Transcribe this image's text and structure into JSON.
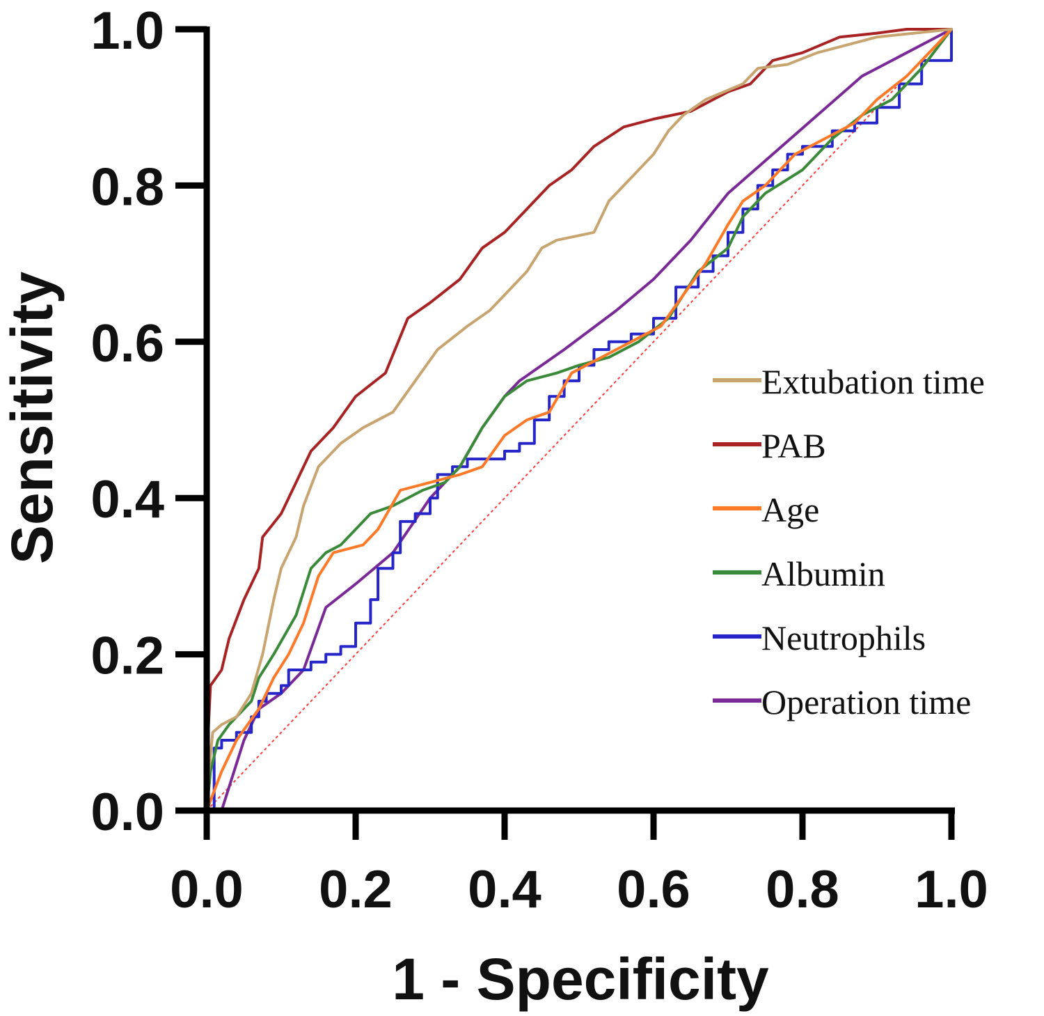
{
  "chart_data": {
    "type": "line",
    "title": "",
    "xlabel": "1 - Specificity",
    "ylabel": "Sensitivity",
    "xlim": [
      0,
      1
    ],
    "ylim": [
      0,
      1
    ],
    "xticks": [
      "0.0",
      "0.2",
      "0.4",
      "0.6",
      "0.8",
      "1.0"
    ],
    "yticks": [
      "0.0",
      "0.2",
      "0.4",
      "0.6",
      "0.8",
      "1.0"
    ],
    "grid": false,
    "legend_position": "right",
    "reference_line": {
      "name": "Reference",
      "color": "#ff3b3b",
      "dashed": true,
      "points": [
        [
          0,
          0
        ],
        [
          1,
          1
        ]
      ]
    },
    "series": [
      {
        "name": "Extubation time",
        "color": "#c8a570",
        "step": false,
        "points": [
          [
            0,
            0
          ],
          [
            0.003,
            0.05
          ],
          [
            0.008,
            0.1
          ],
          [
            0.02,
            0.11
          ],
          [
            0.04,
            0.12
          ],
          [
            0.06,
            0.15
          ],
          [
            0.075,
            0.2
          ],
          [
            0.09,
            0.27
          ],
          [
            0.1,
            0.31
          ],
          [
            0.12,
            0.35
          ],
          [
            0.13,
            0.39
          ],
          [
            0.15,
            0.44
          ],
          [
            0.18,
            0.47
          ],
          [
            0.21,
            0.49
          ],
          [
            0.25,
            0.51
          ],
          [
            0.28,
            0.55
          ],
          [
            0.31,
            0.59
          ],
          [
            0.35,
            0.62
          ],
          [
            0.38,
            0.64
          ],
          [
            0.4,
            0.66
          ],
          [
            0.43,
            0.69
          ],
          [
            0.45,
            0.72
          ],
          [
            0.47,
            0.73
          ],
          [
            0.52,
            0.74
          ],
          [
            0.54,
            0.78
          ],
          [
            0.57,
            0.81
          ],
          [
            0.6,
            0.84
          ],
          [
            0.62,
            0.87
          ],
          [
            0.64,
            0.89
          ],
          [
            0.67,
            0.91
          ],
          [
            0.72,
            0.93
          ],
          [
            0.74,
            0.95
          ],
          [
            0.78,
            0.955
          ],
          [
            0.82,
            0.97
          ],
          [
            0.86,
            0.98
          ],
          [
            0.9,
            0.99
          ],
          [
            0.95,
            0.995
          ],
          [
            1,
            1
          ]
        ]
      },
      {
        "name": "PAB",
        "color": "#a82424",
        "step": false,
        "points": [
          [
            0,
            0
          ],
          [
            0.002,
            0.1
          ],
          [
            0.005,
            0.16
          ],
          [
            0.02,
            0.18
          ],
          [
            0.03,
            0.22
          ],
          [
            0.05,
            0.27
          ],
          [
            0.07,
            0.31
          ],
          [
            0.075,
            0.35
          ],
          [
            0.1,
            0.38
          ],
          [
            0.12,
            0.42
          ],
          [
            0.14,
            0.46
          ],
          [
            0.17,
            0.49
          ],
          [
            0.2,
            0.53
          ],
          [
            0.24,
            0.56
          ],
          [
            0.27,
            0.63
          ],
          [
            0.3,
            0.65
          ],
          [
            0.34,
            0.68
          ],
          [
            0.37,
            0.72
          ],
          [
            0.4,
            0.74
          ],
          [
            0.43,
            0.77
          ],
          [
            0.46,
            0.8
          ],
          [
            0.49,
            0.82
          ],
          [
            0.52,
            0.85
          ],
          [
            0.56,
            0.875
          ],
          [
            0.6,
            0.885
          ],
          [
            0.65,
            0.895
          ],
          [
            0.7,
            0.92
          ],
          [
            0.73,
            0.93
          ],
          [
            0.76,
            0.96
          ],
          [
            0.8,
            0.97
          ],
          [
            0.85,
            0.99
          ],
          [
            0.9,
            0.995
          ],
          [
            0.94,
            1
          ],
          [
            1,
            1
          ]
        ]
      },
      {
        "name": "Age",
        "color": "#ff7a28",
        "step": false,
        "points": [
          [
            0,
            0
          ],
          [
            0.02,
            0.05
          ],
          [
            0.04,
            0.09
          ],
          [
            0.07,
            0.13
          ],
          [
            0.09,
            0.17
          ],
          [
            0.11,
            0.2
          ],
          [
            0.13,
            0.24
          ],
          [
            0.15,
            0.3
          ],
          [
            0.17,
            0.33
          ],
          [
            0.21,
            0.34
          ],
          [
            0.23,
            0.36
          ],
          [
            0.26,
            0.41
          ],
          [
            0.3,
            0.42
          ],
          [
            0.34,
            0.43
          ],
          [
            0.37,
            0.44
          ],
          [
            0.4,
            0.48
          ],
          [
            0.43,
            0.5
          ],
          [
            0.46,
            0.51
          ],
          [
            0.49,
            0.56
          ],
          [
            0.53,
            0.58
          ],
          [
            0.57,
            0.6
          ],
          [
            0.61,
            0.62
          ],
          [
            0.64,
            0.66
          ],
          [
            0.67,
            0.7
          ],
          [
            0.7,
            0.75
          ],
          [
            0.72,
            0.78
          ],
          [
            0.75,
            0.8
          ],
          [
            0.79,
            0.84
          ],
          [
            0.83,
            0.86
          ],
          [
            0.87,
            0.88
          ],
          [
            0.9,
            0.91
          ],
          [
            0.94,
            0.94
          ],
          [
            0.97,
            0.97
          ],
          [
            1,
            1
          ]
        ]
      },
      {
        "name": "Albumin",
        "color": "#3a8a3a",
        "step": false,
        "points": [
          [
            0,
            0
          ],
          [
            0.005,
            0.05
          ],
          [
            0.015,
            0.09
          ],
          [
            0.03,
            0.11
          ],
          [
            0.06,
            0.14
          ],
          [
            0.07,
            0.17
          ],
          [
            0.09,
            0.2
          ],
          [
            0.12,
            0.25
          ],
          [
            0.14,
            0.31
          ],
          [
            0.16,
            0.33
          ],
          [
            0.18,
            0.34
          ],
          [
            0.2,
            0.36
          ],
          [
            0.22,
            0.38
          ],
          [
            0.25,
            0.39
          ],
          [
            0.29,
            0.41
          ],
          [
            0.32,
            0.42
          ],
          [
            0.34,
            0.44
          ],
          [
            0.37,
            0.49
          ],
          [
            0.4,
            0.53
          ],
          [
            0.43,
            0.55
          ],
          [
            0.47,
            0.56
          ],
          [
            0.5,
            0.57
          ],
          [
            0.54,
            0.58
          ],
          [
            0.58,
            0.6
          ],
          [
            0.62,
            0.63
          ],
          [
            0.66,
            0.69
          ],
          [
            0.7,
            0.72
          ],
          [
            0.72,
            0.76
          ],
          [
            0.75,
            0.79
          ],
          [
            0.8,
            0.82
          ],
          [
            0.84,
            0.86
          ],
          [
            0.88,
            0.89
          ],
          [
            0.92,
            0.91
          ],
          [
            0.96,
            0.95
          ],
          [
            1,
            1
          ]
        ]
      },
      {
        "name": "Neutrophils",
        "color": "#2525c8",
        "step": true,
        "points": [
          [
            0,
            0
          ],
          [
            0.01,
            0.08
          ],
          [
            0.02,
            0.09
          ],
          [
            0.04,
            0.1
          ],
          [
            0.06,
            0.12
          ],
          [
            0.07,
            0.14
          ],
          [
            0.08,
            0.15
          ],
          [
            0.1,
            0.16
          ],
          [
            0.11,
            0.18
          ],
          [
            0.14,
            0.19
          ],
          [
            0.16,
            0.2
          ],
          [
            0.18,
            0.21
          ],
          [
            0.2,
            0.24
          ],
          [
            0.22,
            0.27
          ],
          [
            0.23,
            0.31
          ],
          [
            0.25,
            0.33
          ],
          [
            0.26,
            0.37
          ],
          [
            0.28,
            0.38
          ],
          [
            0.3,
            0.4
          ],
          [
            0.31,
            0.43
          ],
          [
            0.33,
            0.44
          ],
          [
            0.35,
            0.45
          ],
          [
            0.4,
            0.46
          ],
          [
            0.42,
            0.47
          ],
          [
            0.44,
            0.5
          ],
          [
            0.46,
            0.53
          ],
          [
            0.48,
            0.55
          ],
          [
            0.5,
            0.57
          ],
          [
            0.52,
            0.59
          ],
          [
            0.54,
            0.6
          ],
          [
            0.57,
            0.61
          ],
          [
            0.6,
            0.63
          ],
          [
            0.63,
            0.67
          ],
          [
            0.66,
            0.69
          ],
          [
            0.68,
            0.71
          ],
          [
            0.7,
            0.74
          ],
          [
            0.72,
            0.77
          ],
          [
            0.74,
            0.8
          ],
          [
            0.76,
            0.82
          ],
          [
            0.78,
            0.84
          ],
          [
            0.8,
            0.85
          ],
          [
            0.84,
            0.87
          ],
          [
            0.87,
            0.88
          ],
          [
            0.9,
            0.9
          ],
          [
            0.93,
            0.93
          ],
          [
            0.96,
            0.96
          ],
          [
            1,
            1
          ]
        ]
      },
      {
        "name": "Operation time",
        "color": "#7a2a96",
        "step": false,
        "points": [
          [
            0,
            0
          ],
          [
            0.02,
            0
          ],
          [
            0.05,
            0.09
          ],
          [
            0.07,
            0.13
          ],
          [
            0.1,
            0.15
          ],
          [
            0.13,
            0.18
          ],
          [
            0.16,
            0.26
          ],
          [
            0.2,
            0.29
          ],
          [
            0.25,
            0.33
          ],
          [
            0.3,
            0.4
          ],
          [
            0.34,
            0.44
          ],
          [
            0.37,
            0.49
          ],
          [
            0.4,
            0.53
          ],
          [
            0.42,
            0.55
          ],
          [
            0.48,
            0.59
          ],
          [
            0.55,
            0.64
          ],
          [
            0.6,
            0.68
          ],
          [
            0.65,
            0.73
          ],
          [
            0.7,
            0.79
          ],
          [
            0.76,
            0.84
          ],
          [
            0.82,
            0.89
          ],
          [
            0.88,
            0.94
          ],
          [
            0.94,
            0.97
          ],
          [
            1,
            1
          ]
        ]
      }
    ]
  }
}
